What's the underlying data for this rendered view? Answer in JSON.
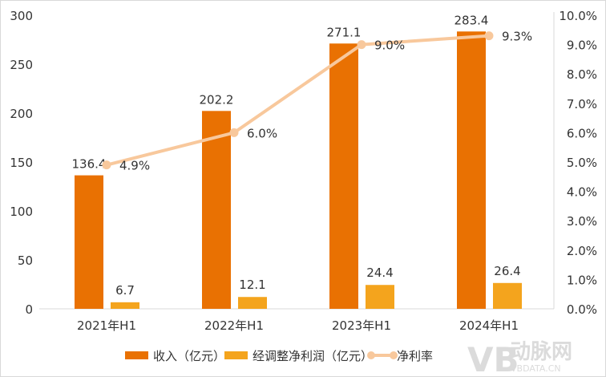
{
  "chart_data": {
    "type": "bar",
    "categories": [
      "2021年H1",
      "2022年H1",
      "2023年H1",
      "2024年H1"
    ],
    "series": [
      {
        "name": "收入（亿元）",
        "type": "bar",
        "axis": "left",
        "values": [
          136.4,
          202.2,
          271.1,
          283.4
        ],
        "labels": [
          "136.4",
          "202.2",
          "271.1",
          "283.4"
        ],
        "color": "#E97102"
      },
      {
        "name": "经调整净利润（亿元）",
        "type": "bar",
        "axis": "left",
        "values": [
          6.7,
          12.1,
          24.4,
          26.4
        ],
        "labels": [
          "6.7",
          "12.1",
          "24.4",
          "26.4"
        ],
        "color": "#F4A41D"
      },
      {
        "name": "净利率",
        "type": "line",
        "axis": "right",
        "values": [
          4.9,
          6.0,
          9.0,
          9.3
        ],
        "labels": [
          "4.9%",
          "6.0%",
          "9.0%",
          "9.3%"
        ],
        "color": "#F8C89C"
      }
    ],
    "ylim": [
      0,
      300
    ],
    "yticks": [
      "0",
      "50",
      "100",
      "150",
      "200",
      "250",
      "300"
    ],
    "y2lim": [
      0,
      10
    ],
    "y2ticks": [
      "0.0%",
      "1.0%",
      "2.0%",
      "3.0%",
      "4.0%",
      "5.0%",
      "6.0%",
      "7.0%",
      "8.0%",
      "9.0%",
      "10.0%"
    ],
    "grid": false,
    "legend": "bottom"
  },
  "watermark": {
    "logo": "VB",
    "name": "动脉网",
    "url": "VBDATA.CN"
  }
}
